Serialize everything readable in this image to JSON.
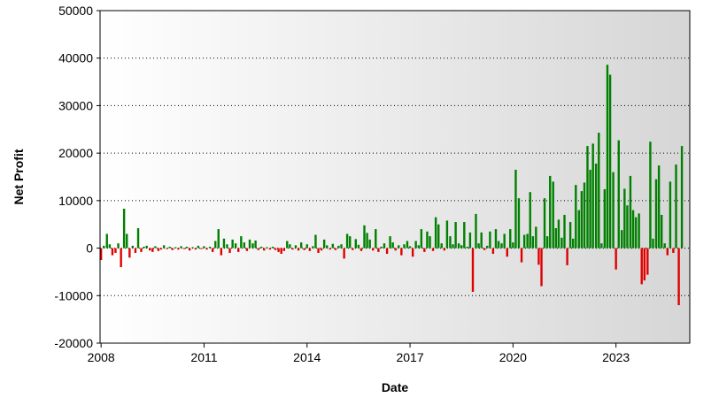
{
  "chart_data": {
    "type": "bar",
    "xlabel": "Date",
    "ylabel": "Net Profit",
    "positive_color": "#008000",
    "negative_color": "#e00000",
    "grid": true,
    "xlim": [
      2007.97,
      2025.15
    ],
    "xticks": [
      2008,
      2011,
      2014,
      2017,
      2020,
      2023
    ],
    "ylim": [
      -20000,
      50000
    ],
    "yticks": [
      -20000,
      -10000,
      0,
      10000,
      20000,
      30000,
      40000,
      50000
    ],
    "x": [
      2008.0,
      2008.08,
      2008.17,
      2008.25,
      2008.33,
      2008.42,
      2008.5,
      2008.58,
      2008.67,
      2008.75,
      2008.83,
      2008.92,
      2009.0,
      2009.08,
      2009.17,
      2009.25,
      2009.33,
      2009.42,
      2009.5,
      2009.58,
      2009.67,
      2009.75,
      2009.83,
      2009.92,
      2010.0,
      2010.08,
      2010.17,
      2010.25,
      2010.33,
      2010.42,
      2010.5,
      2010.58,
      2010.67,
      2010.75,
      2010.83,
      2010.92,
      2011.0,
      2011.08,
      2011.17,
      2011.25,
      2011.33,
      2011.42,
      2011.5,
      2011.58,
      2011.67,
      2011.75,
      2011.83,
      2011.92,
      2012.0,
      2012.08,
      2012.17,
      2012.25,
      2012.33,
      2012.42,
      2012.5,
      2012.58,
      2012.67,
      2012.75,
      2012.83,
      2012.92,
      2013.0,
      2013.08,
      2013.17,
      2013.25,
      2013.33,
      2013.42,
      2013.5,
      2013.58,
      2013.67,
      2013.75,
      2013.83,
      2013.92,
      2014.0,
      2014.08,
      2014.17,
      2014.25,
      2014.33,
      2014.42,
      2014.5,
      2014.58,
      2014.67,
      2014.75,
      2014.83,
      2014.92,
      2015.0,
      2015.08,
      2015.17,
      2015.25,
      2015.33,
      2015.42,
      2015.5,
      2015.58,
      2015.67,
      2015.75,
      2015.83,
      2015.92,
      2016.0,
      2016.08,
      2016.17,
      2016.25,
      2016.33,
      2016.42,
      2016.5,
      2016.58,
      2016.67,
      2016.75,
      2016.83,
      2016.92,
      2017.0,
      2017.08,
      2017.17,
      2017.25,
      2017.33,
      2017.42,
      2017.5,
      2017.58,
      2017.67,
      2017.75,
      2017.83,
      2017.92,
      2018.0,
      2018.08,
      2018.17,
      2018.25,
      2018.33,
      2018.42,
      2018.5,
      2018.58,
      2018.67,
      2018.75,
      2018.83,
      2018.92,
      2019.0,
      2019.08,
      2019.17,
      2019.25,
      2019.33,
      2019.42,
      2019.5,
      2019.58,
      2019.67,
      2019.75,
      2019.83,
      2019.92,
      2020.0,
      2020.08,
      2020.17,
      2020.25,
      2020.33,
      2020.42,
      2020.5,
      2020.58,
      2020.67,
      2020.75,
      2020.83,
      2020.92,
      2021.0,
      2021.08,
      2021.17,
      2021.25,
      2021.33,
      2021.42,
      2021.5,
      2021.58,
      2021.67,
      2021.75,
      2021.83,
      2021.92,
      2022.0,
      2022.08,
      2022.17,
      2022.25,
      2022.33,
      2022.42,
      2022.5,
      2022.58,
      2022.67,
      2022.75,
      2022.83,
      2022.92,
      2023.0,
      2023.08,
      2023.17,
      2023.25,
      2023.33,
      2023.42,
      2023.5,
      2023.58,
      2023.67,
      2023.75,
      2023.83,
      2023.92,
      2024.0,
      2024.08,
      2024.17,
      2024.25,
      2024.33,
      2024.42,
      2024.5,
      2024.58,
      2024.67,
      2024.75,
      2024.83,
      2024.92
    ],
    "values": [
      -2500,
      500,
      3000,
      800,
      -1500,
      -1000,
      1000,
      -4000,
      8300,
      3000,
      -2000,
      500,
      -1000,
      4200,
      -800,
      300,
      500,
      -500,
      -800,
      400,
      -600,
      -300,
      600,
      -200,
      300,
      -400,
      200,
      -300,
      400,
      -200,
      300,
      -500,
      200,
      -300,
      500,
      -200,
      400,
      -300,
      300,
      -800,
      1500,
      4000,
      -1500,
      2000,
      800,
      -1000,
      1800,
      1000,
      -800,
      2500,
      1200,
      -600,
      1800,
      1000,
      1600,
      -400,
      300,
      -500,
      200,
      -300,
      300,
      -400,
      -800,
      -1200,
      -600,
      1500,
      800,
      -300,
      600,
      -500,
      1200,
      -400,
      800,
      -600,
      400,
      2800,
      -1000,
      -500,
      1800,
      600,
      -300,
      900,
      -400,
      500,
      800,
      -2200,
      3000,
      2500,
      -400,
      1900,
      700,
      -600,
      4800,
      3200,
      1800,
      -500,
      4000,
      -800,
      300,
      1000,
      -1200,
      2500,
      1200,
      -500,
      600,
      -1500,
      800,
      1500,
      400,
      -1800,
      1500,
      600,
      4000,
      -800,
      3500,
      2500,
      -600,
      6500,
      5000,
      1000,
      -500,
      5800,
      2500,
      800,
      5500,
      1000,
      600,
      5500,
      300,
      3300,
      -9200,
      7200,
      1000,
      3300,
      -400,
      500,
      3500,
      -1200,
      4000,
      1500,
      1000,
      3000,
      -1800,
      4000,
      1200,
      16500,
      10500,
      -3000,
      2800,
      3000,
      11800,
      2500,
      4500,
      -3500,
      -8000,
      10500,
      2500,
      15200,
      14000,
      4200,
      6000,
      2200,
      7000,
      -3600,
      5500,
      2000,
      13300,
      8000,
      12000,
      13800,
      21500,
      16500,
      22000,
      17800,
      24300,
      1000,
      12400,
      38600,
      36500,
      16000,
      -4500,
      22700,
      3800,
      12500,
      9000,
      15200,
      8000,
      6500,
      7300,
      -7600,
      -6800,
      -5600,
      22400,
      2000,
      14500,
      17400,
      7000,
      1000,
      -1500,
      14000,
      -1000,
      17600,
      -12000,
      21500
    ]
  }
}
